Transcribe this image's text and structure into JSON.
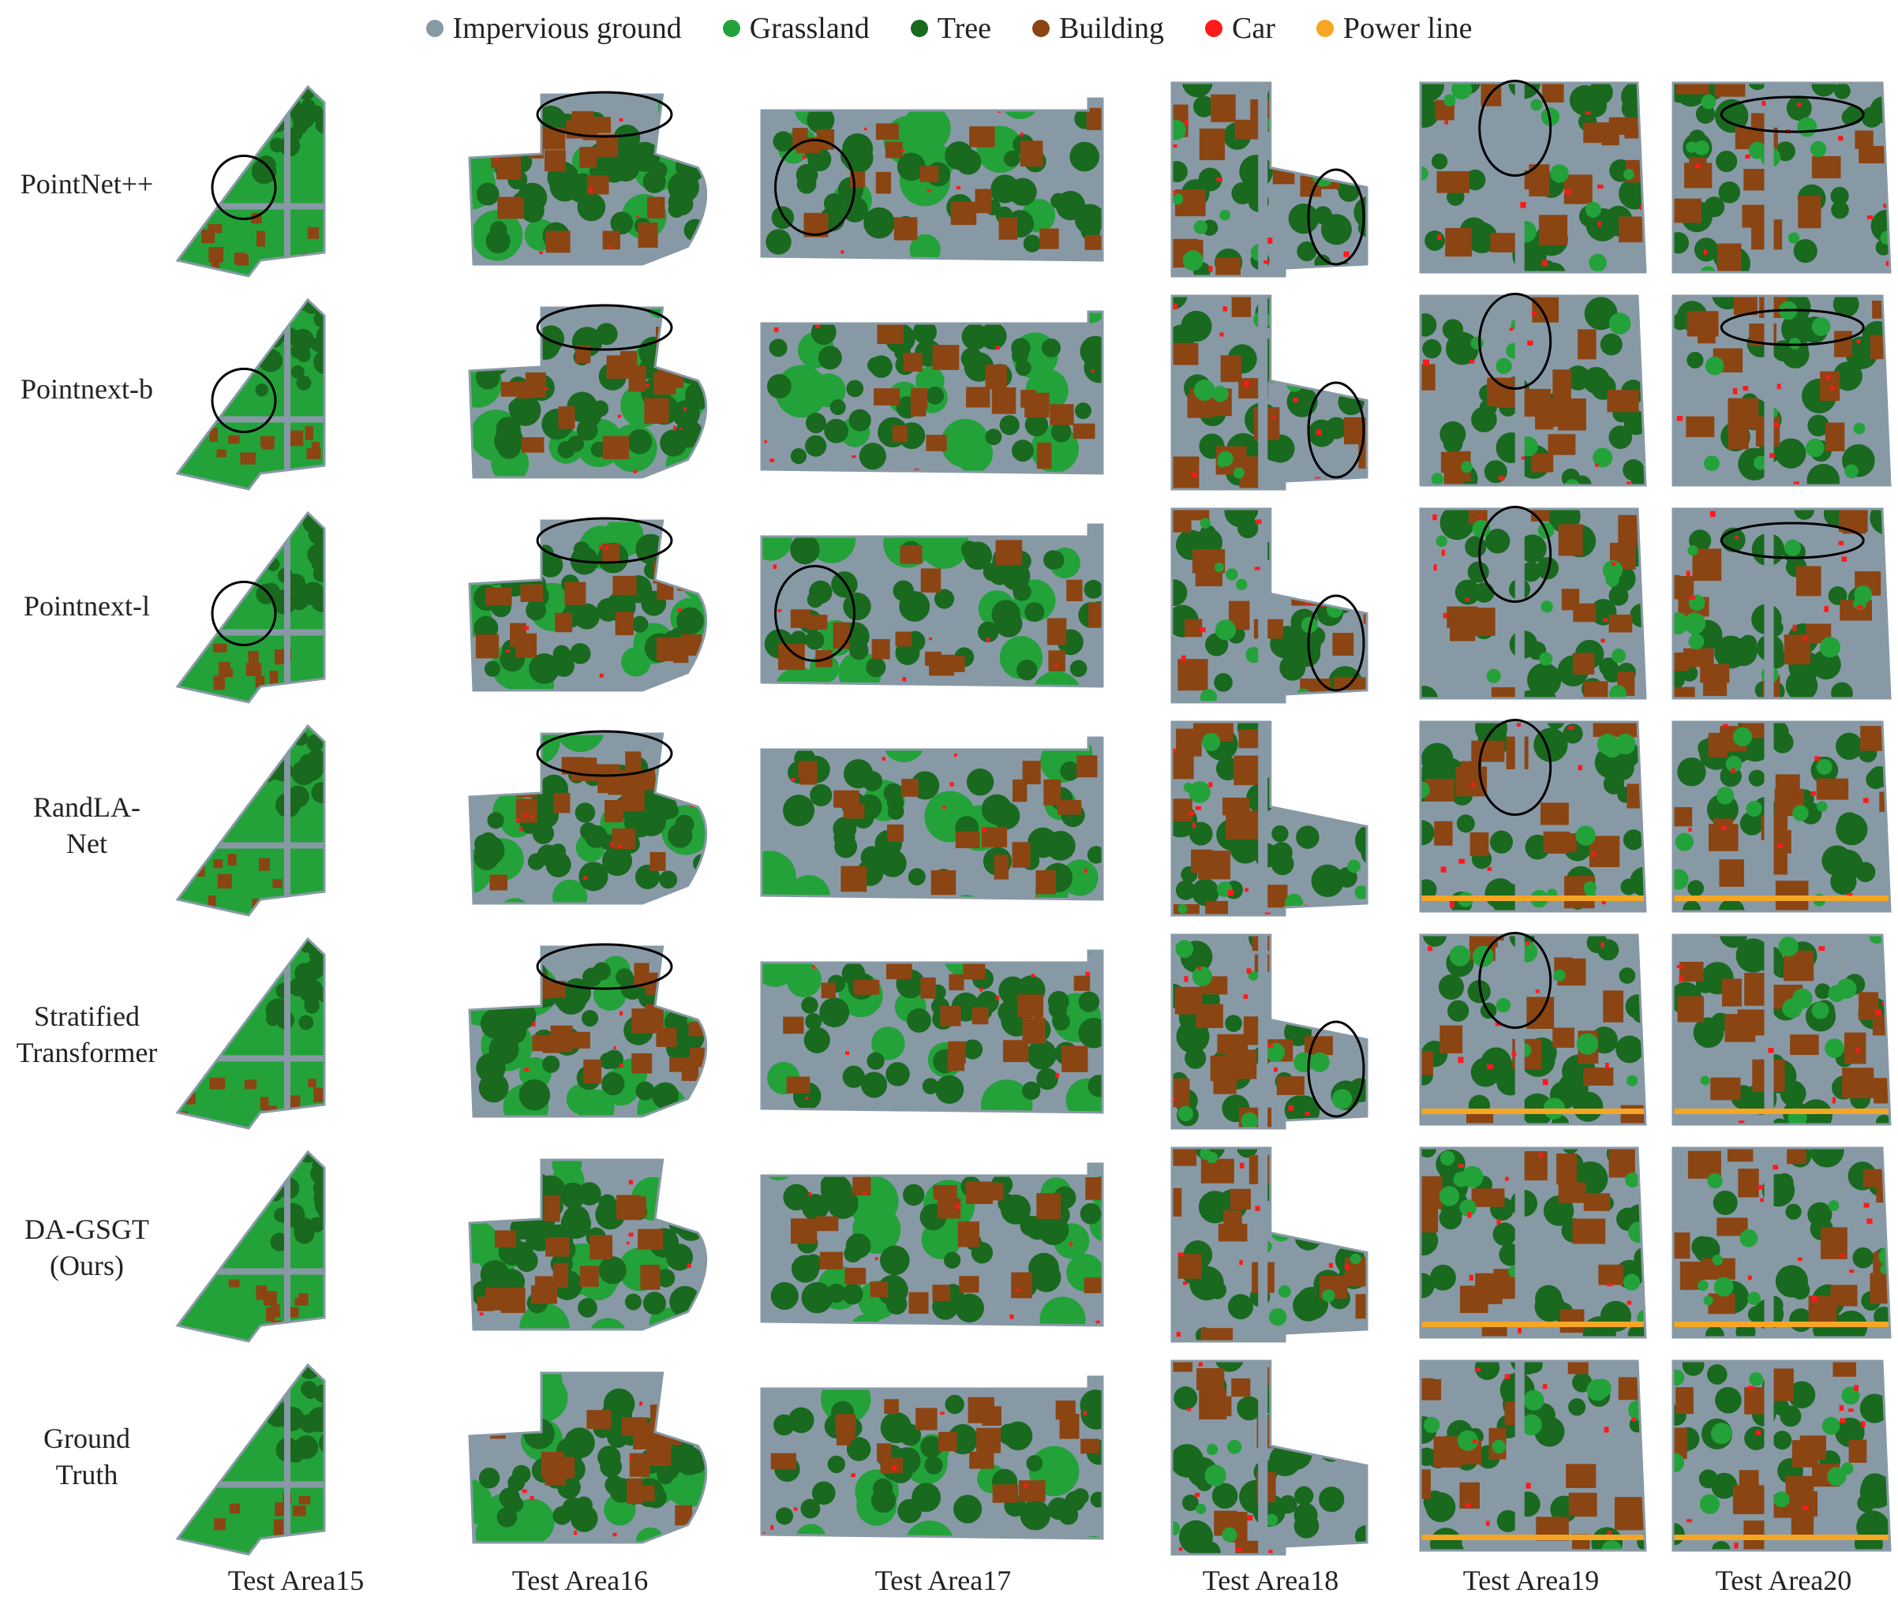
{
  "legend": [
    {
      "label": "Impervious ground",
      "color": "#8899a6"
    },
    {
      "label": "Grassland",
      "color": "#23a23a"
    },
    {
      "label": "Tree",
      "color": "#19691f"
    },
    {
      "label": "Building",
      "color": "#8b4513"
    },
    {
      "label": "Car",
      "color": "#ff1a1a"
    },
    {
      "label": "Power line",
      "color": "#f5a623"
    }
  ],
  "rows": [
    {
      "line1": "PointNet++",
      "line2": ""
    },
    {
      "line1": "Pointnext-b",
      "line2": ""
    },
    {
      "line1": "Pointnext-l",
      "line2": ""
    },
    {
      "line1": "RandLA-",
      "line2": "Net"
    },
    {
      "line1": "Stratified",
      "line2": "Transformer"
    },
    {
      "line1": "DA-GSGT",
      "line2": "(Ours)"
    },
    {
      "line1": "Ground",
      "line2": "Truth"
    }
  ],
  "columns": [
    "Test Area15",
    "Test Area16",
    "Test  Area17",
    "Test Area18",
    "Test  Area19",
    "Test Area20"
  ]
}
